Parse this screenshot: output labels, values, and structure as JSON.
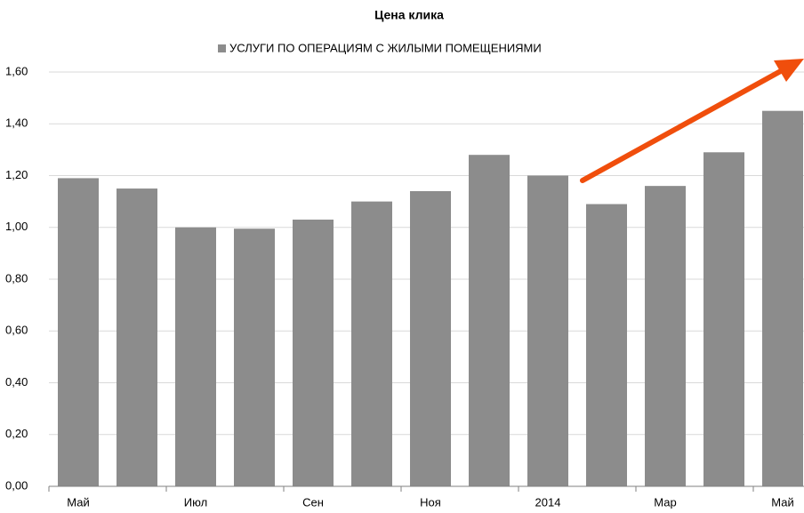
{
  "chart_data": {
    "type": "bar",
    "title": "Цена клика",
    "categories": [
      "Май",
      null,
      "Июл",
      null,
      "Сен",
      null,
      "Ноя",
      null,
      "2014",
      null,
      "Мар",
      null,
      "Май"
    ],
    "series": [
      {
        "name": "УСЛУГИ ПО ОПЕРАЦИЯМ С ЖИЛЫМИ ПОМЕЩЕНИЯМИ",
        "color": "#8c8c8c",
        "values": [
          1.19,
          1.15,
          1.0,
          0.995,
          1.03,
          1.1,
          1.14,
          1.28,
          1.2,
          1.09,
          1.16,
          1.29,
          1.45
        ]
      }
    ],
    "ylim": [
      0,
      1.6
    ],
    "yticks": [
      {
        "value": 0,
        "label": "0,00"
      },
      {
        "value": 0.2,
        "label": "0,20"
      },
      {
        "value": 0.4,
        "label": "0,40"
      },
      {
        "value": 0.6,
        "label": "0,60"
      },
      {
        "value": 0.8,
        "label": "0,80"
      },
      {
        "value": 1.0,
        "label": "1,00"
      },
      {
        "value": 1.2,
        "label": "1,20"
      },
      {
        "value": 1.4,
        "label": "1,40"
      },
      {
        "value": 1.6,
        "label": "1,60"
      }
    ],
    "grid": true
  }
}
